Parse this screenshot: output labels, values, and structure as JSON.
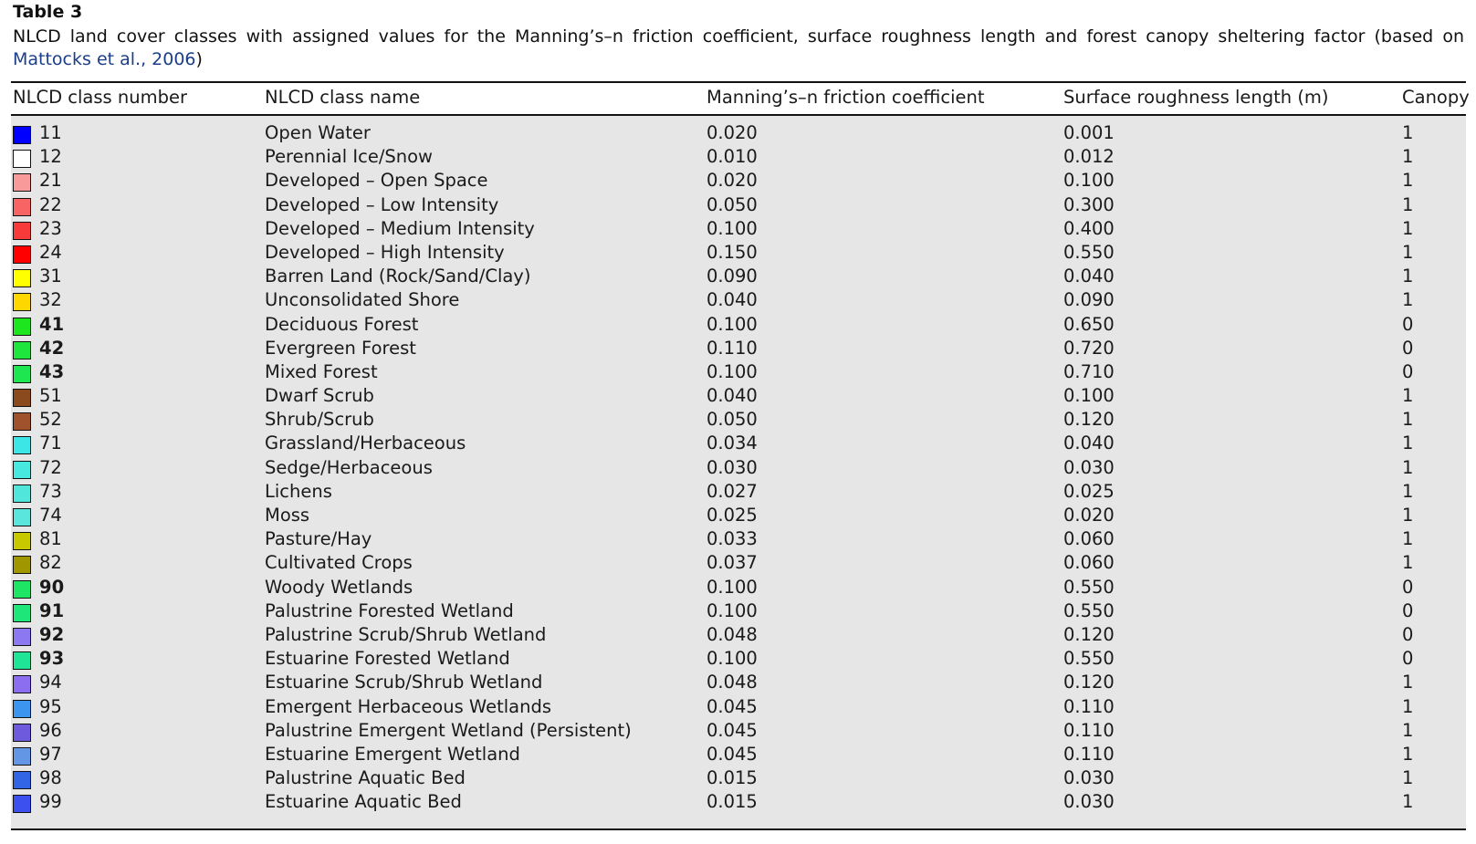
{
  "table_label": "Table 3",
  "caption": {
    "text": "NLCD land cover classes with assigned values for the Manning’s–n friction coefficient, surface roughness length and forest canopy sheltering factor (based on",
    "reference": "Mattocks et al., 2006",
    "closing": ")"
  },
  "header": {
    "col1": "NLCD class number",
    "col2": "NLCD class name",
    "col3": "Manning’s–n friction coefficient",
    "col4": "Surface roughness length (m)",
    "col5": "Canopy"
  },
  "rows": [
    {
      "color": "#0000ff",
      "number": "11",
      "bold": false,
      "name": "Open Water",
      "manning": "0.020",
      "roughness": "0.001",
      "canopy": "1"
    },
    {
      "color": "#ffffff",
      "number": "12",
      "bold": false,
      "name": "Perennial Ice/Snow",
      "manning": "0.010",
      "roughness": "0.012",
      "canopy": "1"
    },
    {
      "color": "#f99a9a",
      "number": "21",
      "bold": false,
      "name": "Developed – Open Space",
      "manning": "0.020",
      "roughness": "0.100",
      "canopy": "1"
    },
    {
      "color": "#f86464",
      "number": "22",
      "bold": false,
      "name": "Developed – Low Intensity",
      "manning": "0.050",
      "roughness": "0.300",
      "canopy": "1"
    },
    {
      "color": "#f83a3a",
      "number": "23",
      "bold": false,
      "name": "Developed – Medium Intensity",
      "manning": "0.100",
      "roughness": "0.400",
      "canopy": "1"
    },
    {
      "color": "#ff0000",
      "number": "24",
      "bold": false,
      "name": "Developed – High Intensity",
      "manning": "0.150",
      "roughness": "0.550",
      "canopy": "1"
    },
    {
      "color": "#ffff00",
      "number": "31",
      "bold": false,
      "name": "Barren Land (Rock/Sand/Clay)",
      "manning": "0.090",
      "roughness": "0.040",
      "canopy": "1"
    },
    {
      "color": "#ffd700",
      "number": "32",
      "bold": false,
      "name": "Unconsolidated Shore",
      "manning": "0.040",
      "roughness": "0.090",
      "canopy": "1"
    },
    {
      "color": "#1ee61e",
      "number": "41",
      "bold": true,
      "name": "Deciduous Forest",
      "manning": "0.100",
      "roughness": "0.650",
      "canopy": "0"
    },
    {
      "color": "#1ee63c",
      "number": "42",
      "bold": true,
      "name": "Evergreen Forest",
      "manning": "0.110",
      "roughness": "0.720",
      "canopy": "0"
    },
    {
      "color": "#1ee650",
      "number": "43",
      "bold": true,
      "name": "Mixed Forest",
      "manning": "0.100",
      "roughness": "0.710",
      "canopy": "0"
    },
    {
      "color": "#8b4a1e",
      "number": "51",
      "bold": false,
      "name": "Dwarf Scrub",
      "manning": "0.040",
      "roughness": "0.100",
      "canopy": "1"
    },
    {
      "color": "#a0522d",
      "number": "52",
      "bold": false,
      "name": "Shrub/Scrub",
      "manning": "0.050",
      "roughness": "0.120",
      "canopy": "1"
    },
    {
      "color": "#3ce6e6",
      "number": "71",
      "bold": false,
      "name": "Grassland/Herbaceous",
      "manning": "0.034",
      "roughness": "0.040",
      "canopy": "1"
    },
    {
      "color": "#46e8e0",
      "number": "72",
      "bold": false,
      "name": "Sedge/Herbaceous",
      "manning": "0.030",
      "roughness": "0.030",
      "canopy": "1"
    },
    {
      "color": "#50e6dc",
      "number": "73",
      "bold": false,
      "name": "Lichens",
      "manning": "0.027",
      "roughness": "0.025",
      "canopy": "1"
    },
    {
      "color": "#5ae6dc",
      "number": "74",
      "bold": false,
      "name": "Moss",
      "manning": "0.025",
      "roughness": "0.020",
      "canopy": "1"
    },
    {
      "color": "#c8c800",
      "number": "81",
      "bold": false,
      "name": "Pasture/Hay",
      "manning": "0.033",
      "roughness": "0.060",
      "canopy": "1"
    },
    {
      "color": "#a09600",
      "number": "82",
      "bold": false,
      "name": "Cultivated Crops",
      "manning": "0.037",
      "roughness": "0.060",
      "canopy": "1"
    },
    {
      "color": "#1ee664",
      "number": "90",
      "bold": true,
      "name": "Woody Wetlands",
      "manning": "0.100",
      "roughness": "0.550",
      "canopy": "0"
    },
    {
      "color": "#1ee678",
      "number": "91",
      "bold": true,
      "name": "Palustrine Forested Wetland",
      "manning": "0.100",
      "roughness": "0.550",
      "canopy": "0"
    },
    {
      "color": "#8c78f0",
      "number": "92",
      "bold": true,
      "name": "Palustrine Scrub/Shrub Wetland",
      "manning": "0.048",
      "roughness": "0.120",
      "canopy": "0"
    },
    {
      "color": "#1ee696",
      "number": "93",
      "bold": true,
      "name": "Estuarine Forested Wetland",
      "manning": "0.100",
      "roughness": "0.550",
      "canopy": "0"
    },
    {
      "color": "#8c6ef0",
      "number": "94",
      "bold": false,
      "name": "Estuarine Scrub/Shrub Wetland",
      "manning": "0.048",
      "roughness": "0.120",
      "canopy": "1"
    },
    {
      "color": "#3c96f0",
      "number": "95",
      "bold": false,
      "name": "Emergent Herbaceous Wetlands",
      "manning": "0.045",
      "roughness": "0.110",
      "canopy": "1"
    },
    {
      "color": "#6e5adc",
      "number": "96",
      "bold": false,
      "name": "Palustrine Emergent Wetland (Persistent)",
      "manning": "0.045",
      "roughness": "0.110",
      "canopy": "1"
    },
    {
      "color": "#6496e6",
      "number": "97",
      "bold": false,
      "name": "Estuarine Emergent Wetland",
      "manning": "0.045",
      "roughness": "0.110",
      "canopy": "1"
    },
    {
      "color": "#3264e6",
      "number": "98",
      "bold": false,
      "name": "Palustrine Aquatic Bed",
      "manning": "0.015",
      "roughness": "0.030",
      "canopy": "1"
    },
    {
      "color": "#3c50f0",
      "number": "99",
      "bold": false,
      "name": "Estuarine Aquatic Bed",
      "manning": "0.015",
      "roughness": "0.030",
      "canopy": "1"
    }
  ]
}
